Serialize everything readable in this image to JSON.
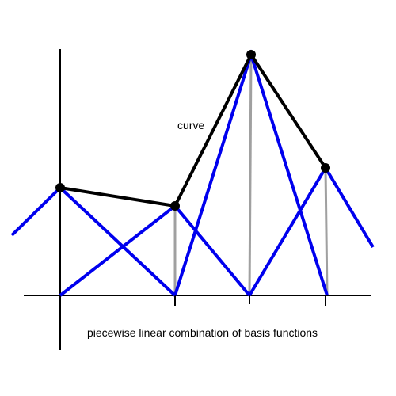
{
  "diagram": {
    "curve_label": "curve",
    "caption": "piecewise linear combination of basis functions"
  },
  "colors": {
    "axis": "#000000",
    "basis": "#0000ee",
    "curve": "#000000",
    "guide": "#a0a0a0",
    "background": "#ffffff"
  }
}
